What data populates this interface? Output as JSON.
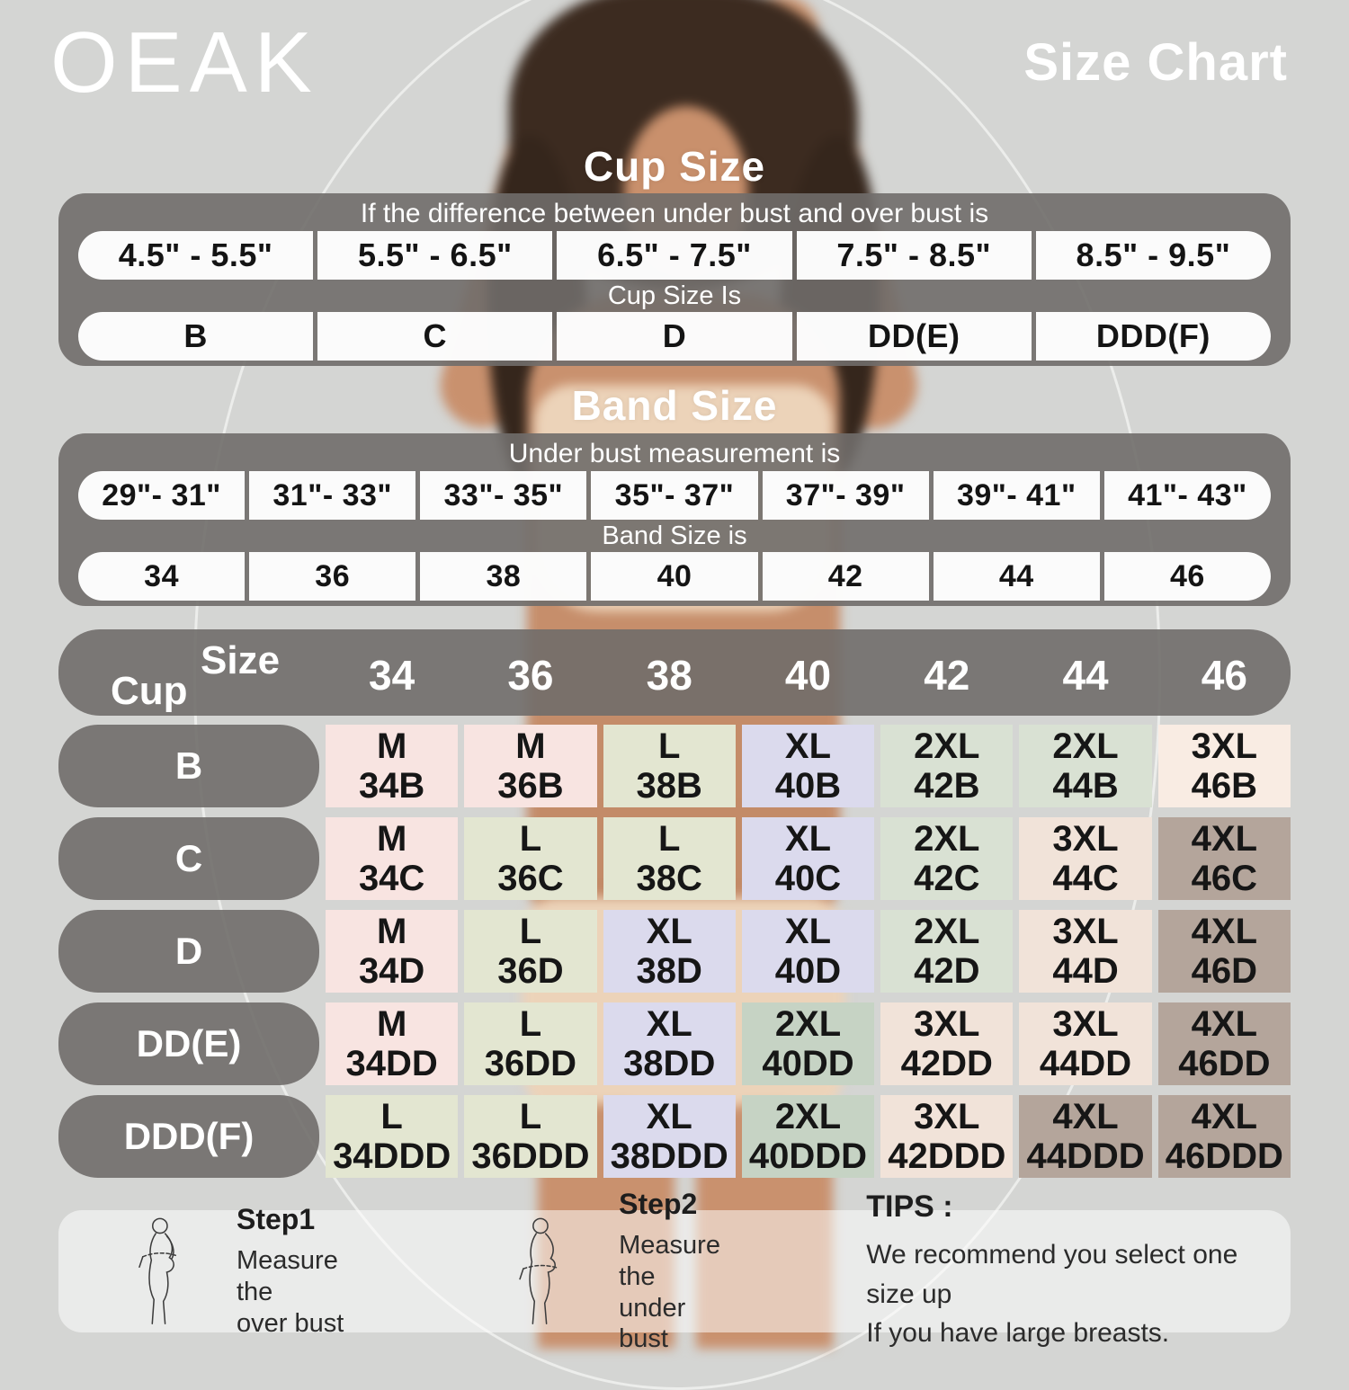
{
  "header": {
    "logo": "OEAK",
    "title": "Size Chart"
  },
  "cup_section": {
    "title": "Cup Size",
    "condition": "If the difference between under bust and over bust is",
    "ranges": [
      "4.5\" - 5.5\"",
      "5.5\" - 6.5\"",
      "6.5\" - 7.5\"",
      "7.5\" - 8.5\"",
      "8.5\" - 9.5\""
    ],
    "result_label": "Cup Size Is",
    "cups": [
      "B",
      "C",
      "D",
      "DD(E)",
      "DDD(F)"
    ]
  },
  "band_section": {
    "title": "Band Size",
    "condition": "Under bust measurement is",
    "ranges": [
      "29\"- 31\"",
      "31\"- 33\"",
      "33\"- 35\"",
      "35\"- 37\"",
      "37\"- 39\"",
      "39\"- 41\"",
      "41\"- 43\""
    ],
    "result_label": "Band Size is",
    "bands": [
      "34",
      "36",
      "38",
      "40",
      "42",
      "44",
      "46"
    ]
  },
  "matrix": {
    "corner_top": "Size",
    "corner_bottom": "Cup",
    "columns": [
      "34",
      "36",
      "38",
      "40",
      "42",
      "44",
      "46"
    ],
    "rows": [
      {
        "cup": "B",
        "cells": [
          [
            "M",
            "34B",
            "pink"
          ],
          [
            "M",
            "36B",
            "pink"
          ],
          [
            "L",
            "38B",
            "green"
          ],
          [
            "XL",
            "40B",
            "purple"
          ],
          [
            "2XL",
            "42B",
            "sage"
          ],
          [
            "2XL",
            "44B",
            "sage"
          ],
          [
            "3XL",
            "46B",
            "peach"
          ]
        ]
      },
      {
        "cup": "C",
        "cells": [
          [
            "M",
            "34C",
            "pink"
          ],
          [
            "L",
            "36C",
            "green"
          ],
          [
            "L",
            "38C",
            "green"
          ],
          [
            "XL",
            "40C",
            "purple"
          ],
          [
            "2XL",
            "42C",
            "sage"
          ],
          [
            "3XL",
            "44C",
            "beige"
          ],
          [
            "4XL",
            "46C",
            "taupe"
          ]
        ]
      },
      {
        "cup": "D",
        "cells": [
          [
            "M",
            "34D",
            "pink"
          ],
          [
            "L",
            "36D",
            "green"
          ],
          [
            "XL",
            "38D",
            "purple"
          ],
          [
            "XL",
            "40D",
            "purple"
          ],
          [
            "2XL",
            "42D",
            "sage"
          ],
          [
            "3XL",
            "44D",
            "beige"
          ],
          [
            "4XL",
            "46D",
            "taupe"
          ]
        ]
      },
      {
        "cup": "DD(E)",
        "cells": [
          [
            "M",
            "34DD",
            "pink"
          ],
          [
            "L",
            "36DD",
            "green"
          ],
          [
            "XL",
            "38DD",
            "purple"
          ],
          [
            "2XL",
            "40DD",
            "dgreen"
          ],
          [
            "3XL",
            "42DD",
            "beige"
          ],
          [
            "3XL",
            "44DD",
            "beige"
          ],
          [
            "4XL",
            "46DD",
            "taupe"
          ]
        ]
      },
      {
        "cup": "DDD(F)",
        "cells": [
          [
            "L",
            "34DDD",
            "green"
          ],
          [
            "L",
            "36DDD",
            "green"
          ],
          [
            "XL",
            "38DDD",
            "purple"
          ],
          [
            "2XL",
            "40DDD",
            "dgreen"
          ],
          [
            "3XL",
            "42DDD",
            "beige"
          ],
          [
            "4XL",
            "44DDD",
            "taupe"
          ],
          [
            "4XL",
            "46DDD",
            "taupe"
          ]
        ]
      }
    ]
  },
  "footer": {
    "steps": [
      {
        "title": "Step1",
        "lines": [
          "Measure the",
          "over bust"
        ],
        "icon": "measure-over-bust-icon"
      },
      {
        "title": "Step2",
        "lines": [
          "Measure the",
          "under bust"
        ],
        "icon": "measure-under-bust-icon"
      }
    ],
    "tips_title": "TIPS :",
    "tips_lines": [
      "We recommend you select one size up",
      "If you have large breasts."
    ]
  },
  "colors": {
    "pink": "#f8e4e1",
    "green": "#e3e6d1",
    "sage": "#d9e1d3",
    "purple": "#dbdaed",
    "dgreen": "#c6d3c4",
    "beige": "#f1e3d9",
    "peach": "#f9ece3",
    "taupe": "#b4a59b",
    "panel_gray": "#706d6a",
    "background": "#d4d5d3"
  }
}
